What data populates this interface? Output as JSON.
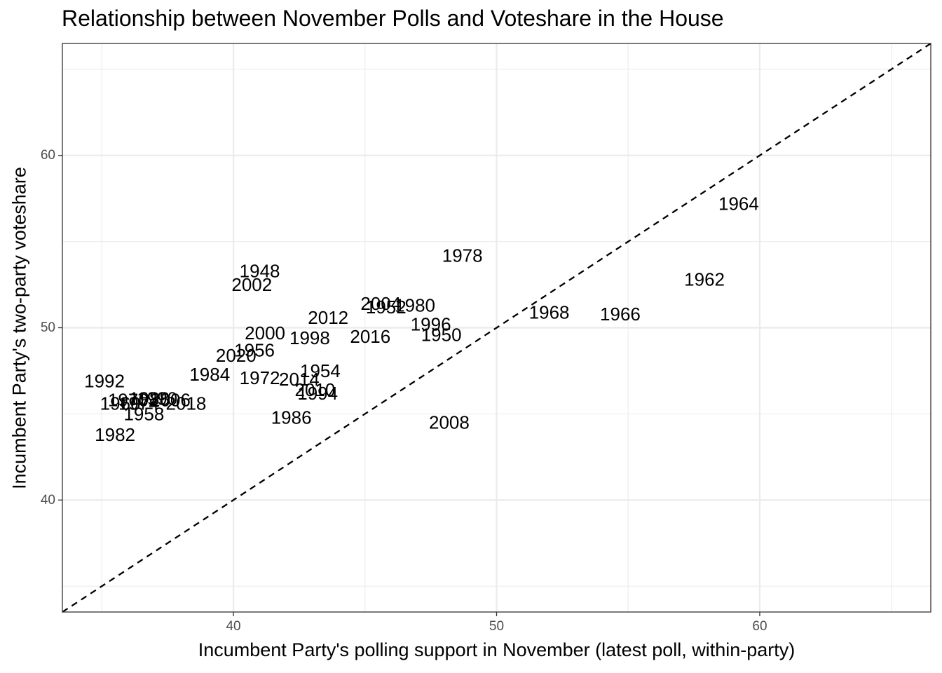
{
  "chart_data": {
    "type": "scatter",
    "title": "Relationship between November Polls and Voteshare in the House",
    "xlabel": "Incumbent Party's polling support in November (latest poll, within-party)",
    "ylabel": "Incumbent Party's two-party voteshare",
    "xlim": [
      33.5,
      66.5
    ],
    "ylim": [
      33.5,
      66.5
    ],
    "x_ticks": [
      40,
      50,
      60
    ],
    "y_ticks": [
      40,
      50,
      60
    ],
    "grid": true,
    "points_as": "year labels",
    "reference_line": {
      "style": "dashed",
      "slope": 1,
      "intercept": 0
    },
    "points": [
      {
        "label": "1948",
        "x": 41.0,
        "y": 53.3
      },
      {
        "label": "2002",
        "x": 40.7,
        "y": 52.5
      },
      {
        "label": "1978",
        "x": 48.7,
        "y": 54.2
      },
      {
        "label": "1964",
        "x": 59.2,
        "y": 57.2
      },
      {
        "label": "1962",
        "x": 57.9,
        "y": 52.8
      },
      {
        "label": "2004",
        "x": 45.6,
        "y": 51.4
      },
      {
        "label": "1952",
        "x": 45.8,
        "y": 51.2
      },
      {
        "label": "1980",
        "x": 46.9,
        "y": 51.3
      },
      {
        "label": "2012",
        "x": 43.6,
        "y": 50.6
      },
      {
        "label": "1968",
        "x": 52.0,
        "y": 50.9
      },
      {
        "label": "1966",
        "x": 54.7,
        "y": 50.8
      },
      {
        "label": "1996",
        "x": 47.5,
        "y": 50.2
      },
      {
        "label": "1950",
        "x": 47.9,
        "y": 49.6
      },
      {
        "label": "2016",
        "x": 45.2,
        "y": 49.5
      },
      {
        "label": "2000",
        "x": 41.2,
        "y": 49.7
      },
      {
        "label": "1998",
        "x": 42.9,
        "y": 49.4
      },
      {
        "label": "2020",
        "x": 40.1,
        "y": 48.4
      },
      {
        "label": "1956",
        "x": 40.8,
        "y": 48.7
      },
      {
        "label": "1954",
        "x": 43.3,
        "y": 47.5
      },
      {
        "label": "1984",
        "x": 39.1,
        "y": 47.3
      },
      {
        "label": "1972",
        "x": 41.0,
        "y": 47.1
      },
      {
        "label": "2014",
        "x": 42.5,
        "y": 47.0
      },
      {
        "label": "1992",
        "x": 35.1,
        "y": 46.9
      },
      {
        "label": "2010",
        "x": 43.1,
        "y": 46.4
      },
      {
        "label": "1994",
        "x": 43.2,
        "y": 46.2
      },
      {
        "label": "1970",
        "x": 36.0,
        "y": 45.8
      },
      {
        "label": "1988",
        "x": 36.8,
        "y": 45.9
      },
      {
        "label": "1990",
        "x": 37.1,
        "y": 45.9
      },
      {
        "label": "2006",
        "x": 37.6,
        "y": 45.8
      },
      {
        "label": "1960",
        "x": 35.7,
        "y": 45.6
      },
      {
        "label": "1974",
        "x": 36.4,
        "y": 45.6
      },
      {
        "label": "2018",
        "x": 38.2,
        "y": 45.6
      },
      {
        "label": "1958",
        "x": 36.6,
        "y": 45.0
      },
      {
        "label": "1986",
        "x": 42.2,
        "y": 44.8
      },
      {
        "label": "2008",
        "x": 48.2,
        "y": 44.5
      },
      {
        "label": "1982",
        "x": 35.5,
        "y": 43.8
      }
    ]
  }
}
